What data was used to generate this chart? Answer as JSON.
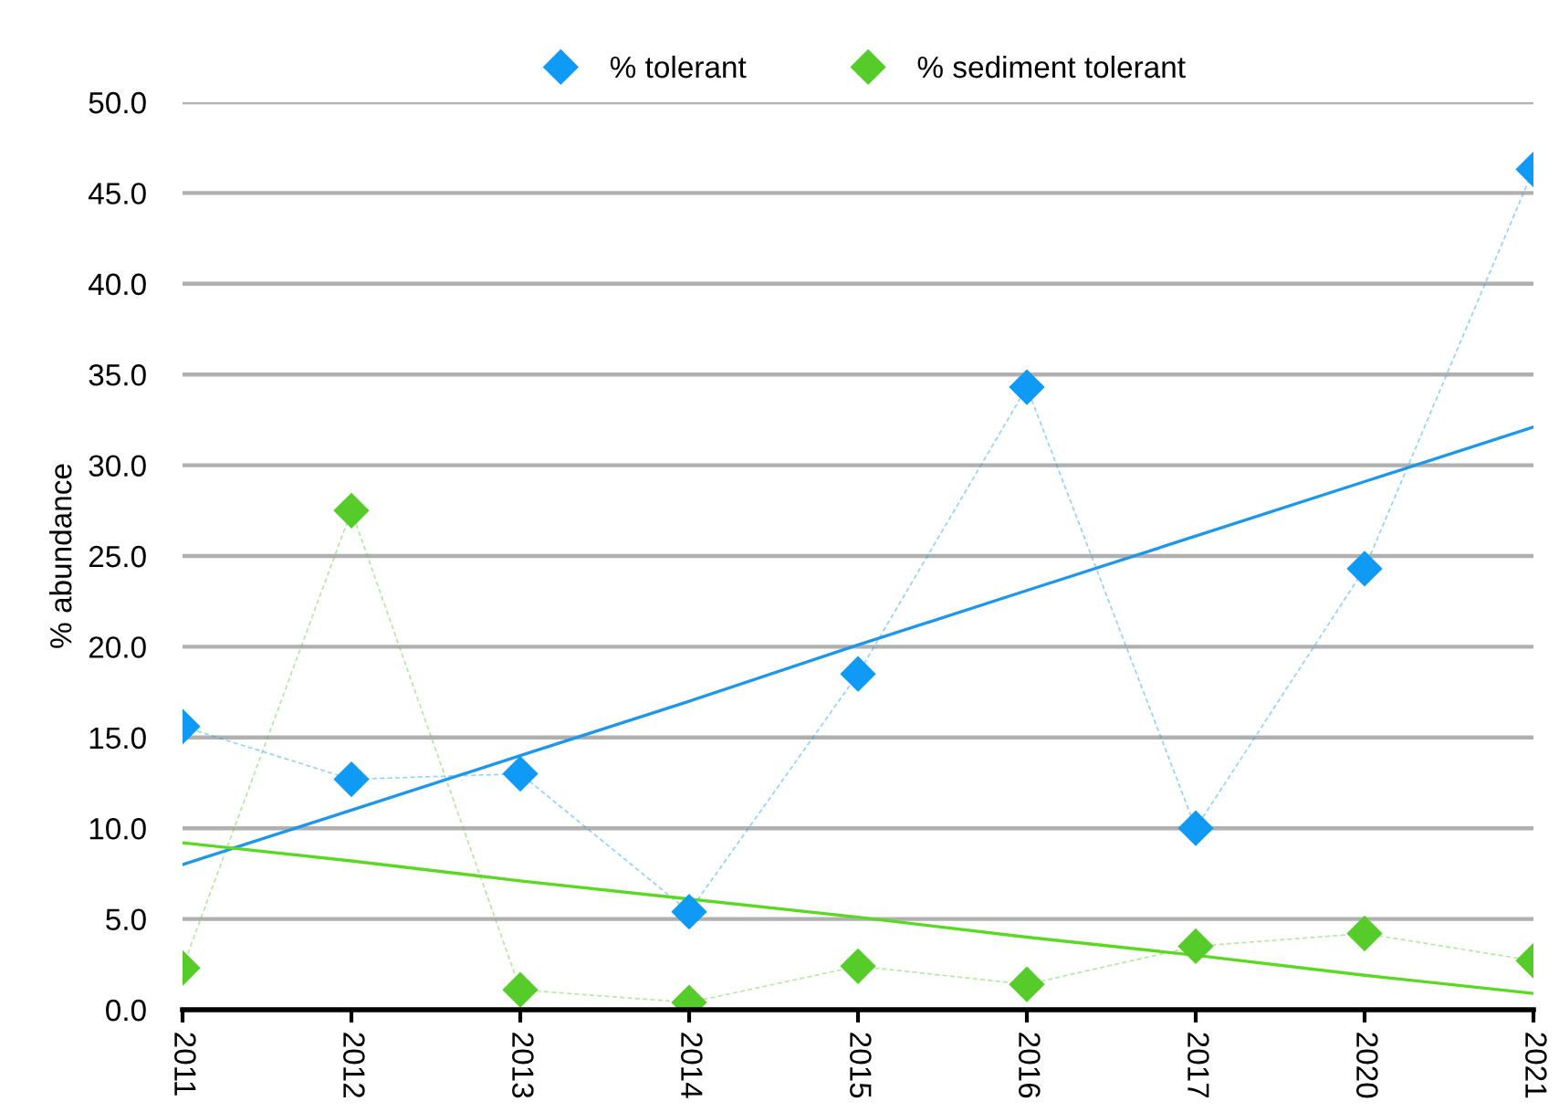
{
  "chart_data": {
    "type": "line",
    "ylabel": "% abundance",
    "categories": [
      "2011",
      "2012",
      "2013",
      "2014",
      "2015",
      "2016",
      "2017",
      "2020",
      "2021"
    ],
    "series": [
      {
        "name": "% tolerant",
        "color": "#0f9af5",
        "marker": "diamond",
        "line_style": "dashed",
        "values": [
          15.6,
          12.7,
          13.0,
          5.4,
          18.5,
          34.3,
          10.0,
          24.3,
          46.3
        ]
      },
      {
        "name": "% sediment tolerant",
        "color": "#55cc2a",
        "marker": "diamond",
        "line_style": "dashed",
        "values": [
          2.3,
          27.5,
          1.1,
          0.4,
          2.4,
          1.4,
          3.5,
          4.2,
          2.7
        ]
      },
      {
        "type": "line",
        "color": "#1e96ea",
        "marker": "none",
        "line_style": "solid",
        "values": [
          8.0,
          11.0,
          14.0,
          17.0,
          20.1,
          23.1,
          26.1,
          29.1,
          32.1
        ]
      },
      {
        "type": "line",
        "color": "#5ad824",
        "marker": "none",
        "line_style": "solid",
        "values": [
          9.2,
          8.2,
          7.1,
          6.1,
          5.1,
          4.0,
          3.0,
          1.9,
          0.9
        ]
      }
    ],
    "ylim": [
      0,
      50
    ],
    "yticks": [
      {
        "value": 0,
        "label": "0.0"
      },
      {
        "value": 5,
        "label": "5.0"
      },
      {
        "value": 10,
        "label": "10.0"
      },
      {
        "value": 15,
        "label": "15.0"
      },
      {
        "value": 20,
        "label": "20.0"
      },
      {
        "value": 25,
        "label": "25.0"
      },
      {
        "value": 30,
        "label": "30.0"
      },
      {
        "value": 35,
        "label": "35.0"
      },
      {
        "value": 40,
        "label": "40.0"
      },
      {
        "value": 45,
        "label": "45.0"
      },
      {
        "value": 50,
        "label": "50.0"
      }
    ],
    "grid": "y",
    "legend": "top"
  }
}
